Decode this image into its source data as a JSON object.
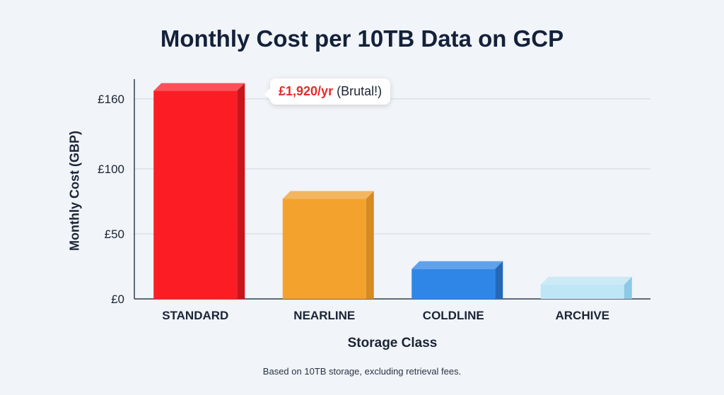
{
  "chart_data": {
    "type": "bar",
    "title": "Monthly Cost per 10TB Data on GCP",
    "xlabel": "Storage Class",
    "ylabel": "Monthly Cost (GBP)",
    "categories": [
      "STANDARD",
      "NEARLINE",
      "COLDLINE",
      "ARCHIVE"
    ],
    "values": [
      160,
      77,
      23,
      11
    ],
    "colors": [
      "#fb1c24",
      "#f3a22e",
      "#2f86e6",
      "#bfe6f6"
    ],
    "side_colors": [
      "#c8141b",
      "#d68a22",
      "#2468b8",
      "#8cc9e6"
    ],
    "yticks": [
      0,
      50,
      100,
      160
    ],
    "ytick_labels": [
      "£0",
      "£50",
      "£100",
      "£160"
    ],
    "ylim": [
      0,
      165
    ],
    "grid": true,
    "annotation": {
      "highlight": "£1,920/yr",
      "text": "(Brutal!)"
    },
    "footnote": "Based on 10TB storage, excluding retrieval fees."
  }
}
